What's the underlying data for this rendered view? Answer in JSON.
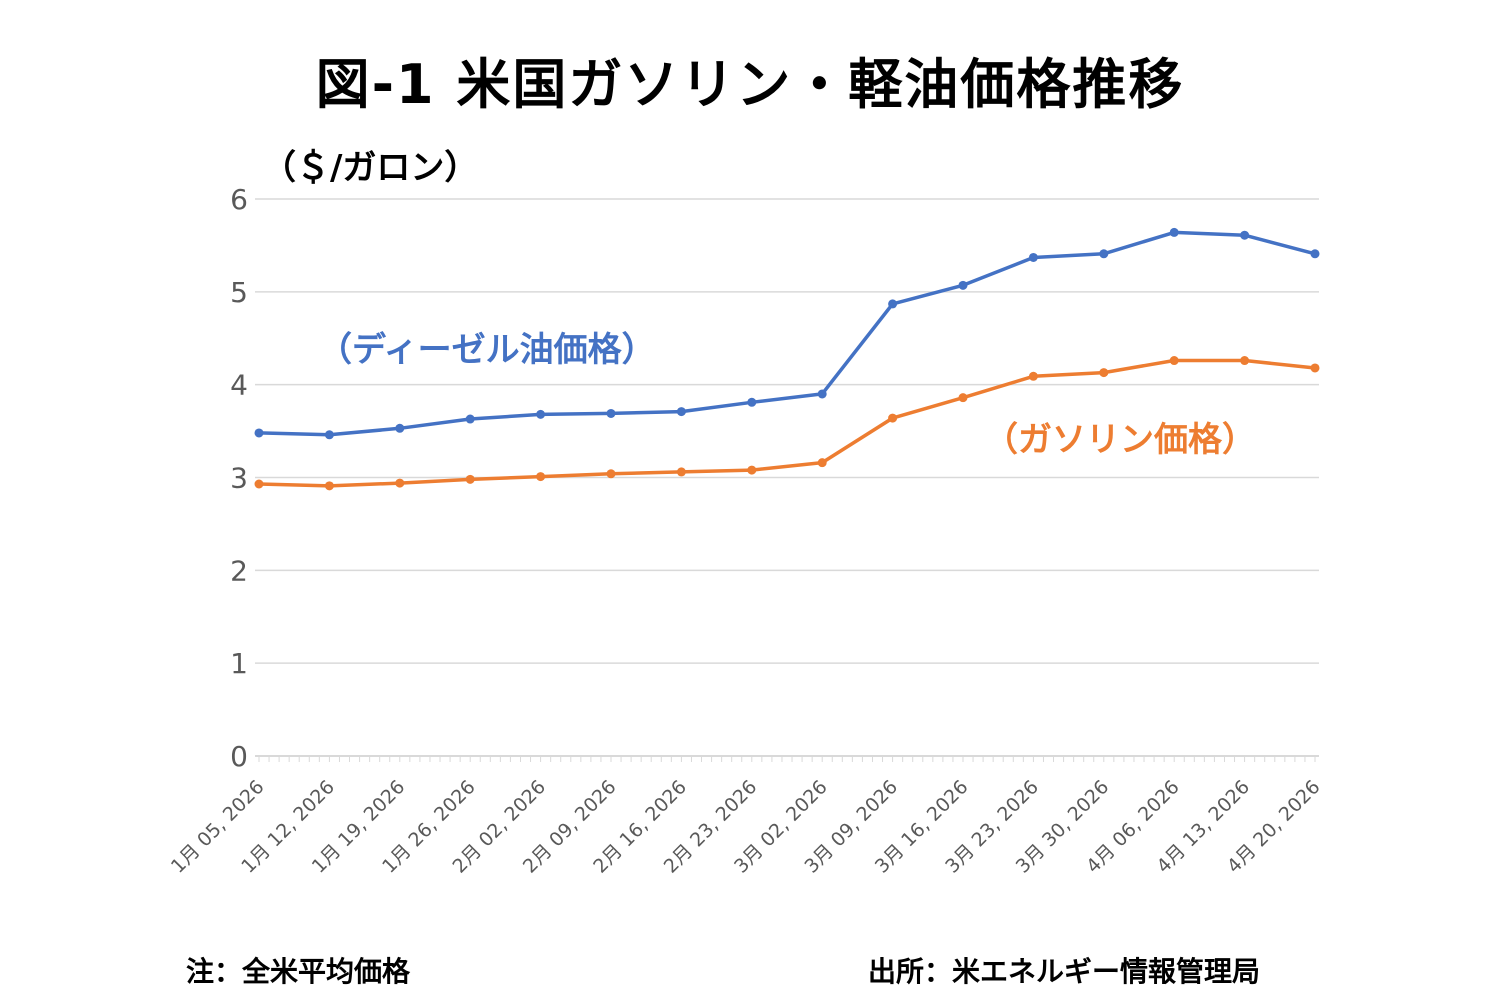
{
  "title": "図-1  米国ガソリン・軽油価格推移",
  "unit_label": "（＄/ガロン）",
  "note": "注：全米平均価格",
  "source": "出所：米エネルギー情報管理局",
  "colors": {
    "diesel": "#4472C4",
    "gasoline": "#ED7D31",
    "grid": "#D9D9D9",
    "tick_text": "#595959"
  },
  "chart_data": {
    "type": "line",
    "title": "図-1  米国ガソリン・軽油価格推移",
    "xlabel": "",
    "ylabel": "（＄/ガロン）",
    "ylim": [
      0,
      6
    ],
    "yticks": [
      "0",
      "1",
      "2",
      "3",
      "4",
      "5",
      "6"
    ],
    "grid": true,
    "categories": [
      "1月  05, 2026",
      "1月  12, 2026",
      "1月  19, 2026",
      "1月  26, 2026",
      "2月  02, 2026",
      "2月  09, 2026",
      "2月  16, 2026",
      "2月  23, 2026",
      "3月  02, 2026",
      "3月  09, 2026",
      "3月  16, 2026",
      "3月  23, 2026",
      "3月  30, 2026",
      "4月  06, 2026",
      "4月  13, 2026",
      "4月  20, 2026"
    ],
    "series": [
      {
        "name": "（ディーゼル油価格）",
        "color": "#4472C4",
        "values": [
          3.48,
          3.46,
          3.53,
          3.63,
          3.68,
          3.69,
          3.71,
          3.81,
          3.9,
          4.87,
          5.07,
          5.37,
          5.41,
          5.64,
          5.61,
          5.41
        ]
      },
      {
        "name": "（ガソリン価格）",
        "color": "#ED7D31",
        "values": [
          2.93,
          2.91,
          2.94,
          2.98,
          3.01,
          3.04,
          3.06,
          3.08,
          3.16,
          3.64,
          3.86,
          4.09,
          4.13,
          4.26,
          4.26,
          4.18
        ]
      }
    ]
  }
}
